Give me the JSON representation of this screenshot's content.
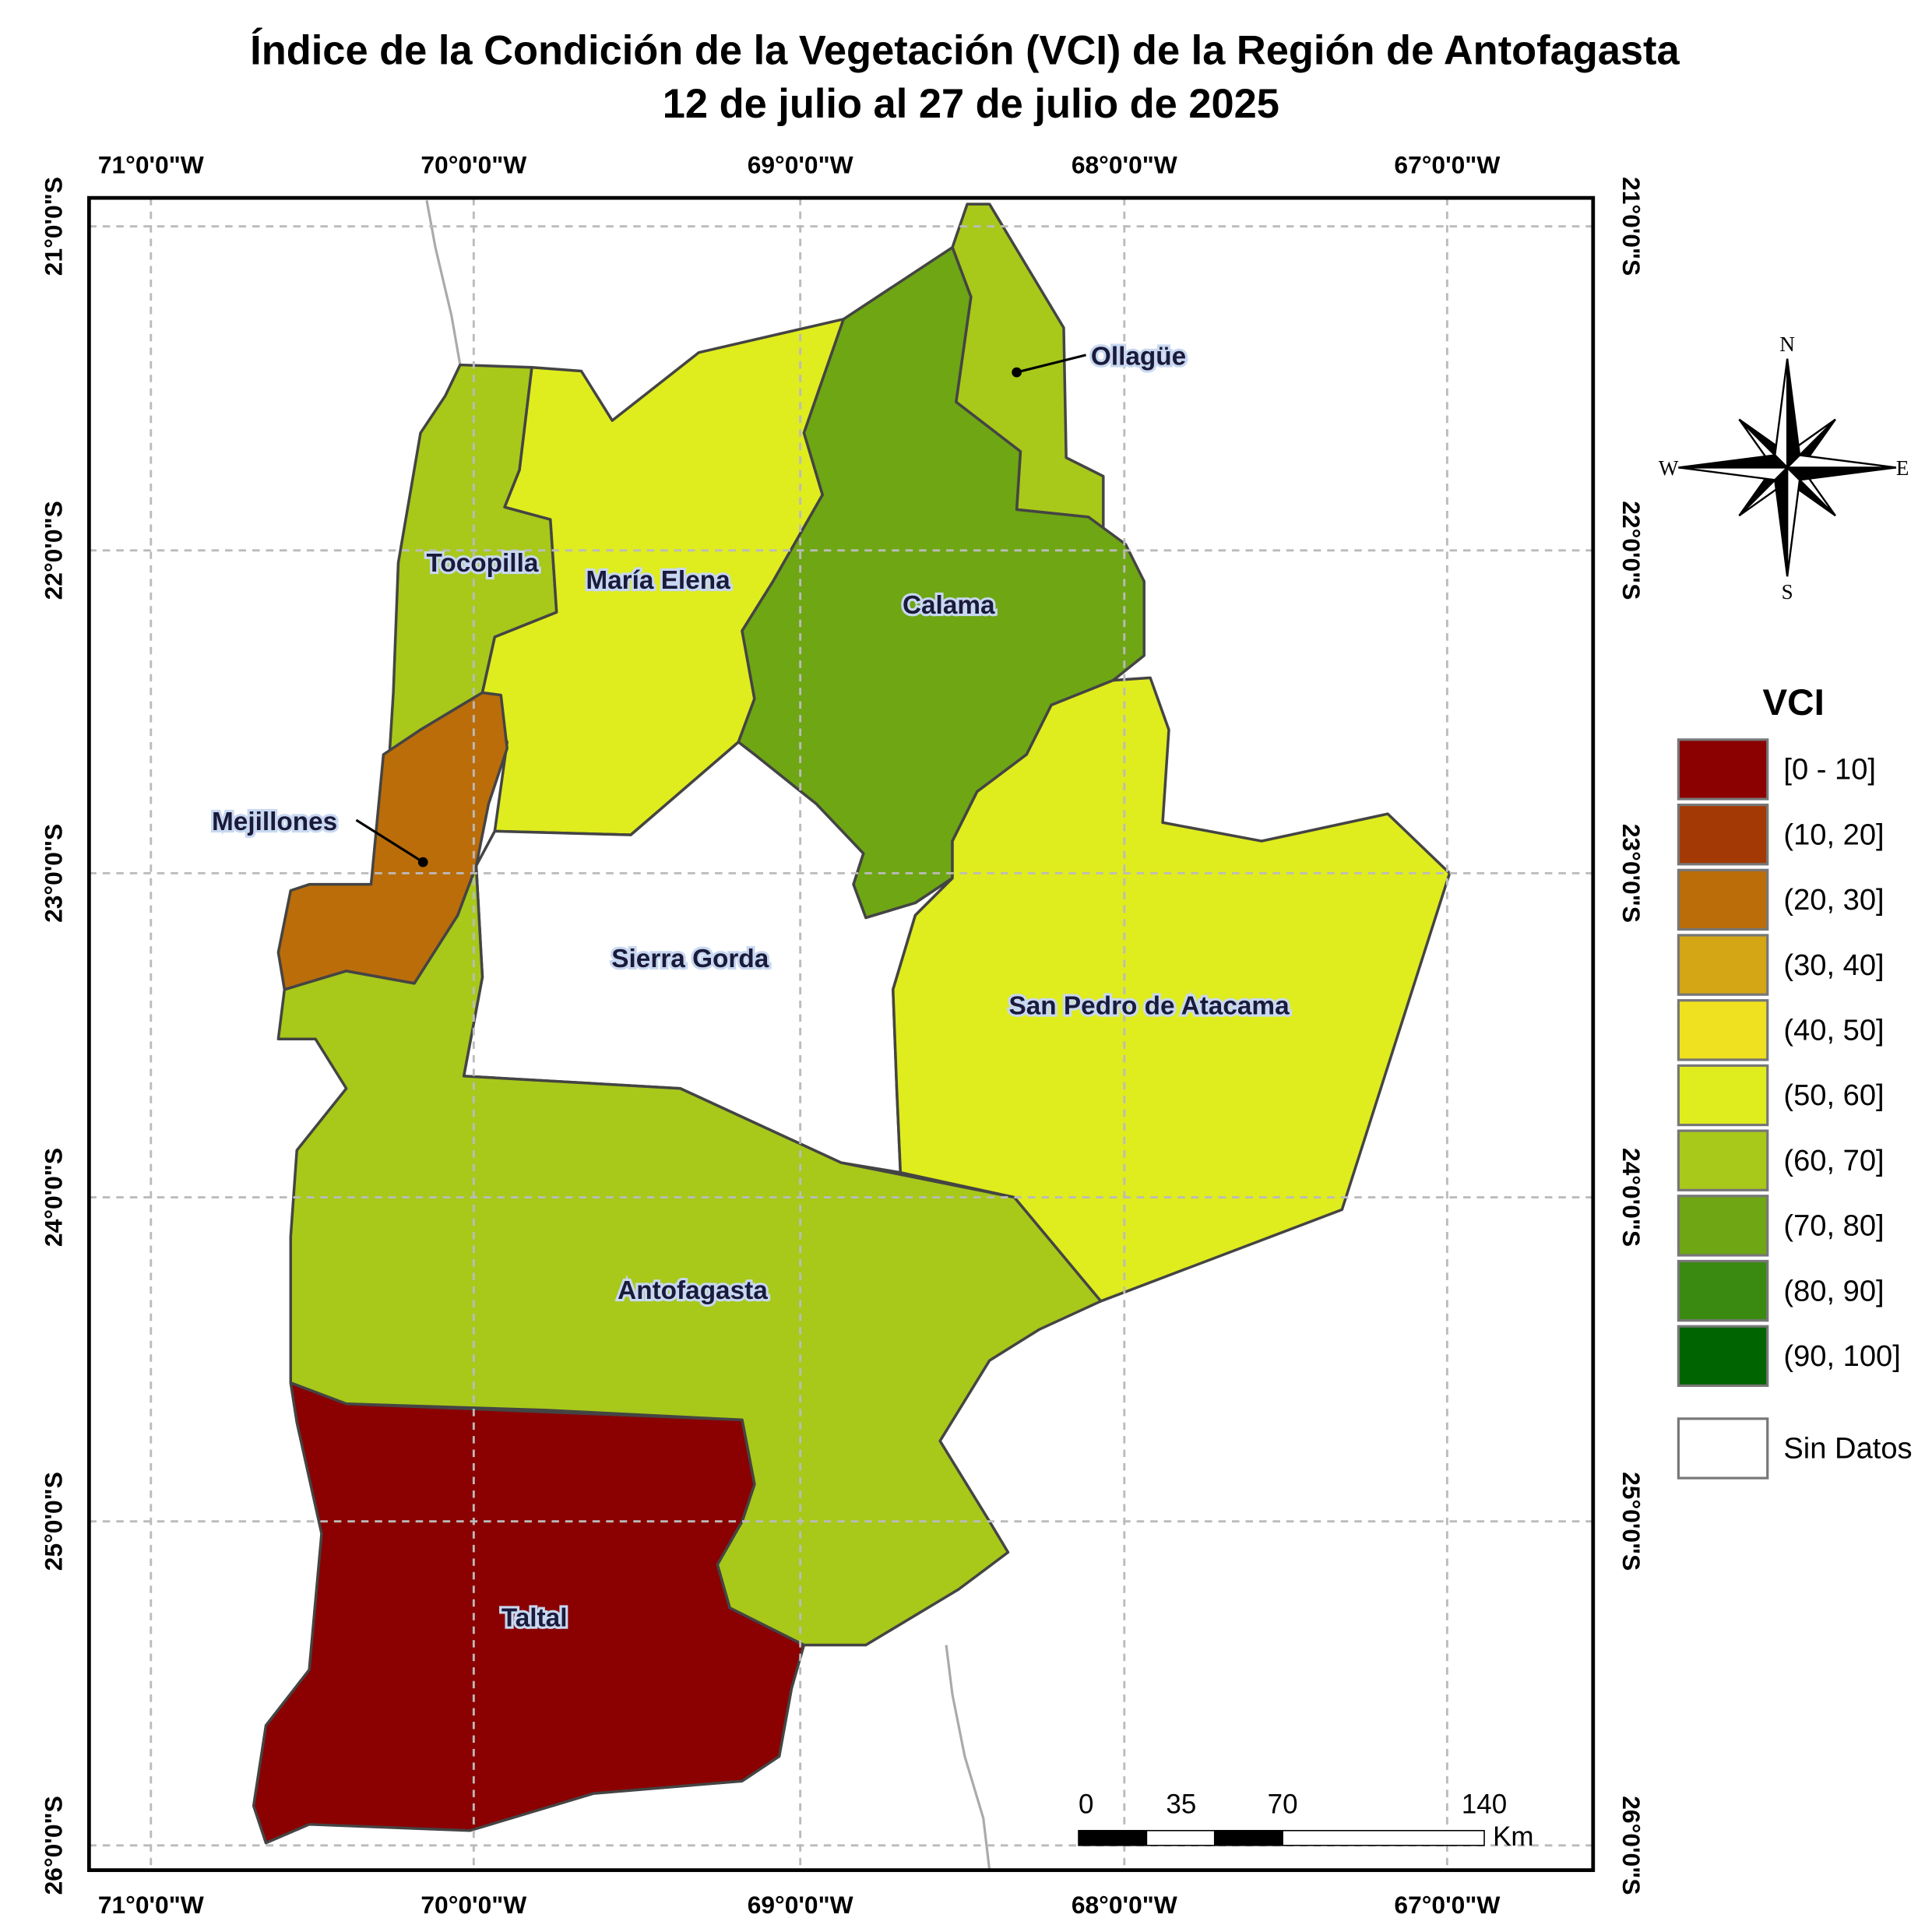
{
  "title": {
    "line1": "Índice de la Condición de la Vegetación (VCI) de la Región de Antofagasta",
    "line2": "12 de julio al 27 de julio de 2025"
  },
  "longitude_labels": [
    "71°0'0\"W",
    "70°0'0\"W",
    "69°0'0\"W",
    "68°0'0\"W",
    "67°0'0\"W"
  ],
  "latitude_labels": [
    "21°0'0\"S",
    "22°0'0\"S",
    "23°0'0\"S",
    "24°0'0\"S",
    "25°0'0\"S",
    "26°0'0\"S"
  ],
  "regions": [
    {
      "name": "Ollagüe",
      "color": "#a8c81a"
    },
    {
      "name": "Tocopilla",
      "color": "#a8c81a"
    },
    {
      "name": "María Elena",
      "color": "#dfec1e"
    },
    {
      "name": "Calama",
      "color": "#6ea614"
    },
    {
      "name": "Mejillones",
      "color": "#bb6d0a"
    },
    {
      "name": "Sierra Gorda",
      "color": "#ffffff"
    },
    {
      "name": "San Pedro de Atacama",
      "color": "#dfec1e"
    },
    {
      "name": "Antofagasta",
      "color": "#a8c81a"
    },
    {
      "name": "Taltal",
      "color": "#8b0000"
    }
  ],
  "legend": {
    "title": "VCI",
    "items": [
      {
        "label": "[0 - 10]",
        "color": "#8b0000"
      },
      {
        "label": "(10, 20]",
        "color": "#a33a05"
      },
      {
        "label": "(20, 30]",
        "color": "#bb6d0a"
      },
      {
        "label": "(30, 40]",
        "color": "#d4a514"
      },
      {
        "label": "(40, 50]",
        "color": "#efe11f"
      },
      {
        "label": "(50, 60]",
        "color": "#dfec1e"
      },
      {
        "label": "(60, 70]",
        "color": "#a8c81a"
      },
      {
        "label": "(70, 80]",
        "color": "#6ea614"
      },
      {
        "label": "(80, 90]",
        "color": "#3a8a12"
      },
      {
        "label": "(90, 100]",
        "color": "#006400"
      },
      {
        "label": "Sin Datos",
        "color": "#ffffff"
      }
    ]
  },
  "scale_bar": {
    "labels": [
      0,
      35,
      70,
      140
    ],
    "unit": "Km"
  },
  "compass": {
    "north": "N",
    "south": "S",
    "east": "E",
    "west": "W"
  }
}
